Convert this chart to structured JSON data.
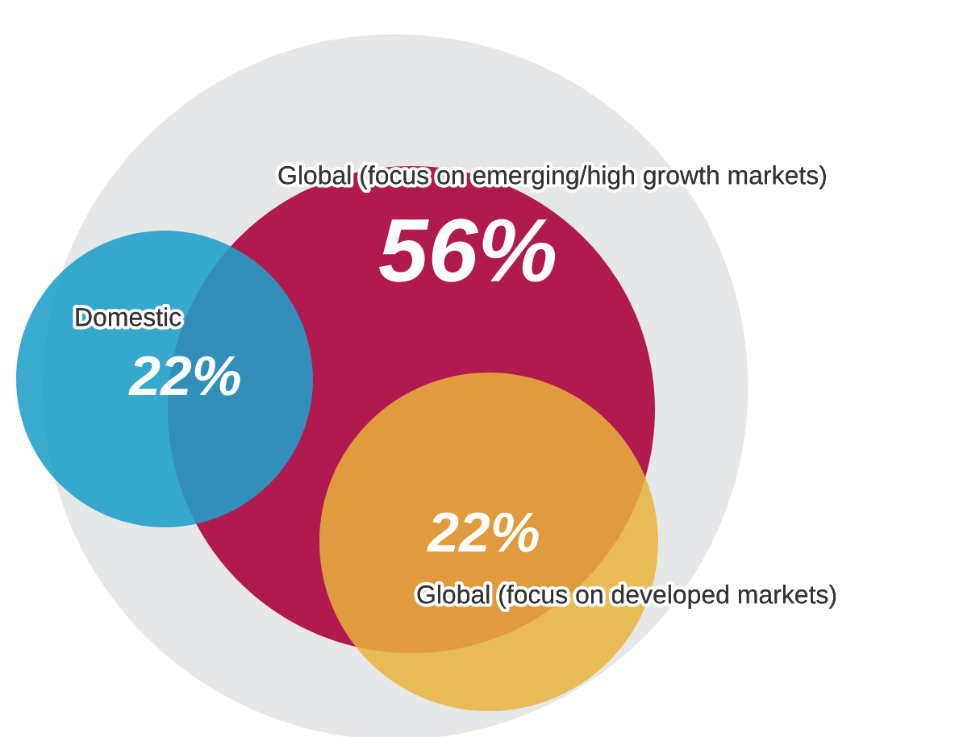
{
  "chart_data": {
    "type": "other",
    "categories": [
      "Global (focus on emerging/high growth markets)",
      "Domestic",
      "Global (focus on developed markets)"
    ],
    "values": [
      56,
      22,
      22
    ],
    "value_labels": [
      "56%",
      "22%",
      "22%"
    ],
    "colors": [
      "#b01a4e",
      "#1f9fc8",
      "#e8b33c"
    ]
  }
}
